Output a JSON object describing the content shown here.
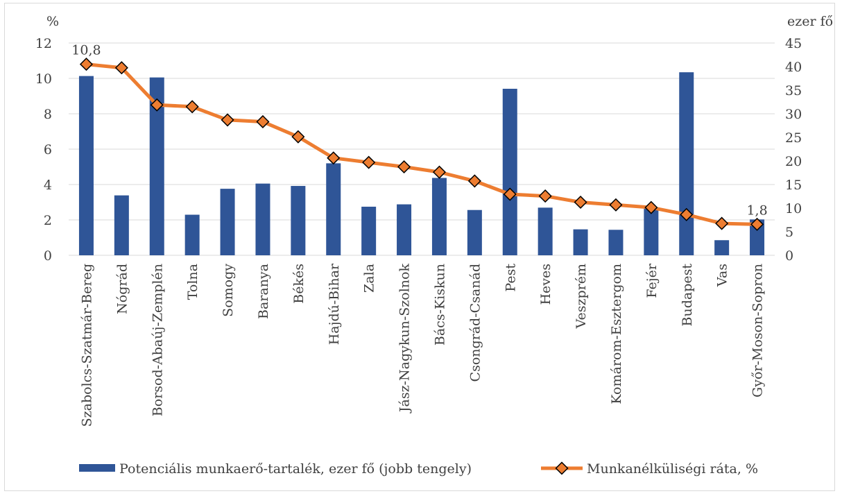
{
  "chart_data": {
    "type": "bar+line",
    "categories": [
      "Szabolcs-Szatmár-Bereg",
      "Nógrád",
      "Borsod-Abaúj-Zemplén",
      "Tolna",
      "Somogy",
      "Baranya",
      "Békés",
      "Hajdú-Bihar",
      "Zala",
      "Jász-Nagykun-Szolnok",
      "Bács-Kiskun",
      "Csongrád-Csanád",
      "Pest",
      "Heves",
      "Veszprém",
      "Komárom-Esztergom",
      "Fejér",
      "Budapest",
      "Vas",
      "Győr-Moson-Sopron"
    ],
    "left_axis": {
      "unit": "%",
      "ylim": [
        0,
        12
      ],
      "ticks": [
        "0",
        "2",
        "4",
        "6",
        "8",
        "10",
        "12"
      ]
    },
    "right_axis": {
      "unit": "ezer fő",
      "ylim": [
        0,
        45
      ],
      "ticks": [
        "0",
        "5",
        "10",
        "15",
        "20",
        "25",
        "30",
        "35",
        "40",
        "45"
      ]
    },
    "series": [
      {
        "name": "Potenciális munkaerő-tartalék, ezer fő (jobb tengely)",
        "kind": "bar",
        "axis": "right",
        "color": "#2f5597",
        "values": [
          38.0,
          12.7,
          37.7,
          8.6,
          14.1,
          15.2,
          14.7,
          19.5,
          10.3,
          10.8,
          16.4,
          9.6,
          35.3,
          10.1,
          5.5,
          5.4,
          10.0,
          38.8,
          3.2,
          7.6
        ]
      },
      {
        "name": "Munkanélküliségi ráta, %",
        "kind": "line",
        "axis": "left",
        "color": "#ed7d31",
        "marker_color": "#ed7d31",
        "values": [
          10.8,
          10.6,
          8.5,
          8.4,
          7.65,
          7.55,
          6.7,
          5.5,
          5.25,
          5.0,
          4.7,
          4.2,
          3.45,
          3.35,
          3.0,
          2.85,
          2.7,
          2.3,
          1.8,
          1.75
        ],
        "data_labels": [
          {
            "index": 0,
            "text": "10,8"
          },
          {
            "index": 19,
            "text": "1,8"
          }
        ]
      }
    ],
    "grid": "horizontal",
    "legend": "bottom"
  }
}
